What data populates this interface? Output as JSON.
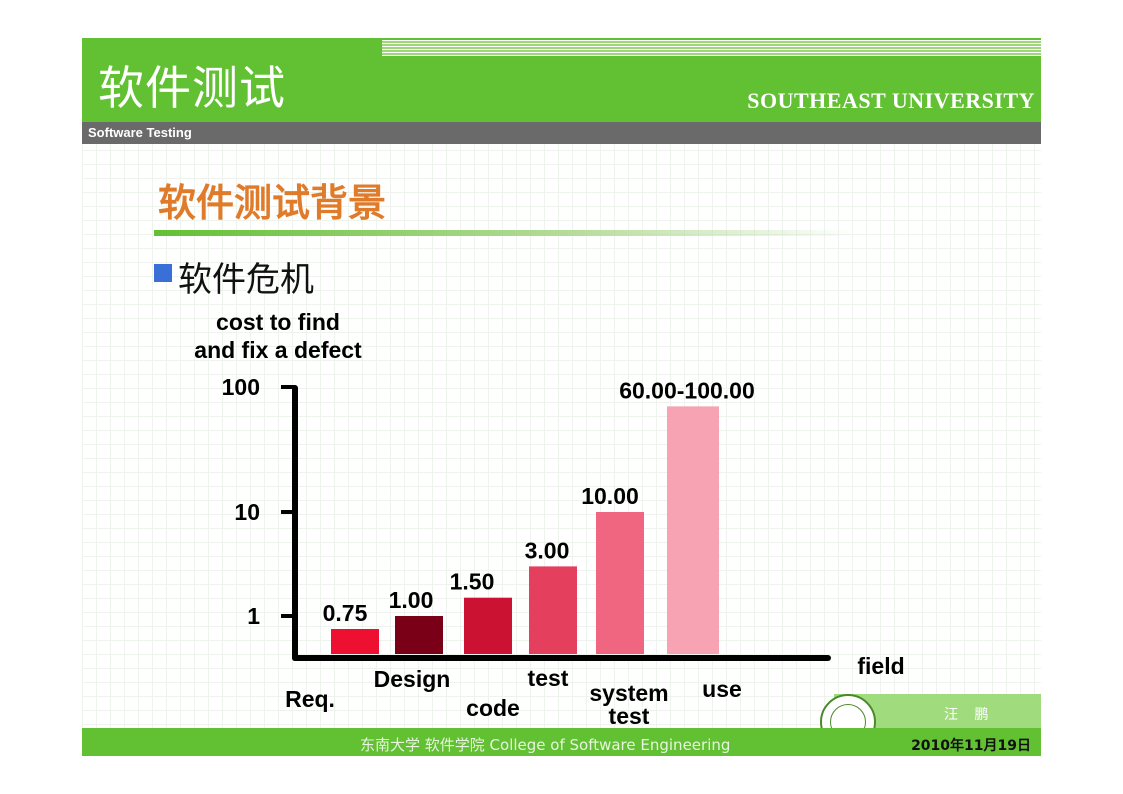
{
  "header": {
    "title": "软件测试",
    "university": "SOUTHEAST UNIVERSITY",
    "subtitle": "Software Testing"
  },
  "section": {
    "title": "软件测试背景",
    "bullet": "软件危机"
  },
  "footer": {
    "text": "东南大学  软件学院   College of Software Engineering",
    "author": "汪 鹏",
    "date": "2010年11月19日"
  },
  "colors": {
    "header_green": "#62c033",
    "title_orange": "#e07b2a",
    "bullet_blue": "#3a6fd8"
  },
  "chart_data": {
    "type": "bar",
    "ylabel": "cost to find and fix a defect",
    "xlabel": "field",
    "yscale": "log",
    "ytick_labels": [
      "1",
      "10",
      "100"
    ],
    "categories": [
      "Req.",
      "Design",
      "code",
      "test",
      "system test",
      "use"
    ],
    "values": [
      0.75,
      1.0,
      1.5,
      3.0,
      10.0,
      70.0
    ],
    "data_labels": [
      "0.75",
      "1.00",
      "1.50",
      "3.00",
      "10.00",
      "60.00-100.00"
    ],
    "colors": [
      "#ee1030",
      "#7a0018",
      "#cc1233",
      "#e4405e",
      "#f06680",
      "#f7a3b4"
    ],
    "ylim": [
      0.45,
      100
    ]
  }
}
